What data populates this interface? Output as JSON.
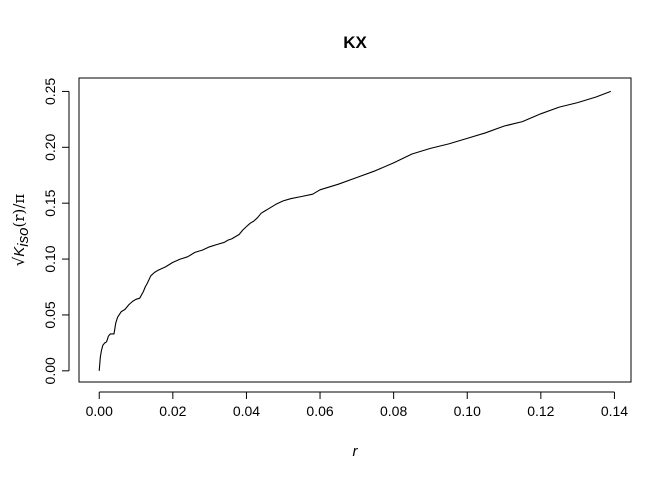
{
  "chart_data": {
    "type": "line",
    "title": "KX",
    "xlabel": "r",
    "ylabel": "√K_iso(r)/π",
    "ylabel_parts": {
      "sqrt": "√",
      "K": "K",
      "iso": "iso",
      "r_paren": "(r)/π"
    },
    "xlim": [
      -0.0055,
      0.1445
    ],
    "ylim": [
      -0.01,
      0.262
    ],
    "x_ticks": [
      0.0,
      0.02,
      0.04,
      0.06,
      0.08,
      0.1,
      0.12,
      0.14
    ],
    "x_tick_labels": [
      "0.00",
      "0.02",
      "0.04",
      "0.06",
      "0.08",
      "0.10",
      "0.12",
      "0.14"
    ],
    "y_ticks": [
      0.0,
      0.05,
      0.1,
      0.15,
      0.2,
      0.25
    ],
    "y_tick_labels": [
      "0.00",
      "0.05",
      "0.10",
      "0.15",
      "0.20",
      "0.25"
    ],
    "grid": false,
    "series": [
      {
        "color": "#000000",
        "x": [
          0.0,
          0.0003,
          0.0006,
          0.001,
          0.0015,
          0.002,
          0.0025,
          0.003,
          0.004,
          0.0045,
          0.005,
          0.006,
          0.007,
          0.008,
          0.009,
          0.01,
          0.011,
          0.012,
          0.0125,
          0.013,
          0.014,
          0.015,
          0.016,
          0.018,
          0.02,
          0.022,
          0.024,
          0.025,
          0.026,
          0.028,
          0.03,
          0.032,
          0.034,
          0.035,
          0.036,
          0.038,
          0.039,
          0.04,
          0.041,
          0.042,
          0.043,
          0.044,
          0.045,
          0.046,
          0.048,
          0.05,
          0.052,
          0.055,
          0.058,
          0.06,
          0.065,
          0.07,
          0.075,
          0.08,
          0.085,
          0.09,
          0.095,
          0.1,
          0.105,
          0.11,
          0.115,
          0.12,
          0.125,
          0.13,
          0.135,
          0.139
        ],
        "y": [
          0.0,
          0.012,
          0.018,
          0.023,
          0.025,
          0.026,
          0.031,
          0.033,
          0.033,
          0.043,
          0.048,
          0.053,
          0.055,
          0.059,
          0.062,
          0.064,
          0.065,
          0.071,
          0.075,
          0.078,
          0.085,
          0.088,
          0.09,
          0.093,
          0.097,
          0.1,
          0.102,
          0.104,
          0.106,
          0.108,
          0.111,
          0.113,
          0.115,
          0.117,
          0.118,
          0.122,
          0.126,
          0.129,
          0.132,
          0.134,
          0.137,
          0.141,
          0.143,
          0.145,
          0.149,
          0.152,
          0.154,
          0.156,
          0.158,
          0.162,
          0.167,
          0.173,
          0.179,
          0.186,
          0.194,
          0.199,
          0.203,
          0.208,
          0.213,
          0.219,
          0.223,
          0.23,
          0.236,
          0.24,
          0.245,
          0.25
        ]
      }
    ]
  }
}
